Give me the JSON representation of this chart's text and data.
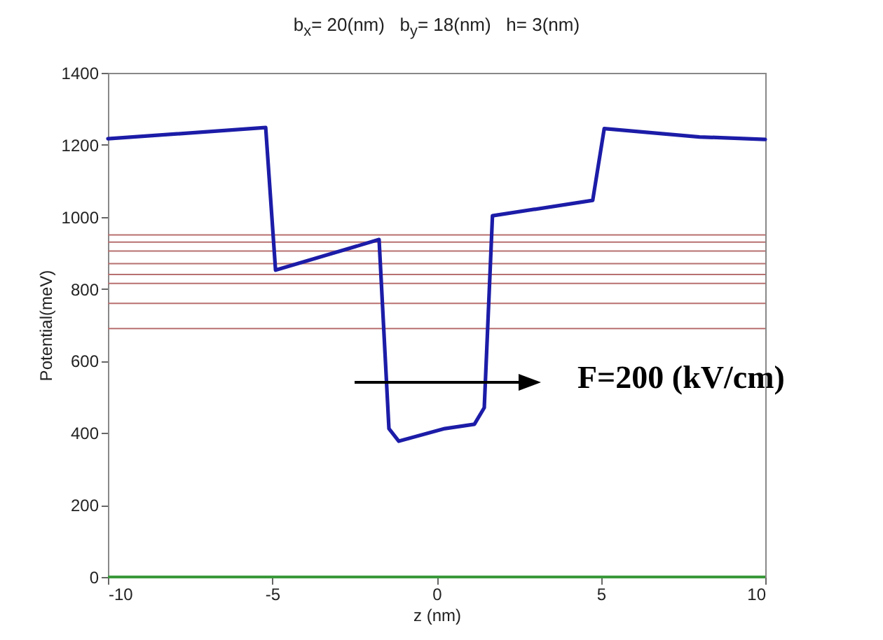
{
  "chart_data": {
    "type": "line",
    "title": "b$_{x}$= 20(nm)   b$_{y}$= 18(nm)   h= 3(nm)",
    "xlabel": "z (nm)",
    "ylabel": "Potential(meV)",
    "x": [
      -10,
      -5.2,
      -4.9,
      -1.75,
      -1.45,
      -1.15,
      0.25,
      1.15,
      1.45,
      1.7,
      4.75,
      5.1,
      8,
      10
    ],
    "series": [
      {
        "color": "#1c1ca8",
        "values": [
          1217,
          1248,
          852,
          937,
          412,
          377,
          412,
          424,
          470,
          1003,
          1046,
          1245,
          1222,
          1215
        ]
      }
    ],
    "xlim": [
      -10,
      10
    ],
    "xticks": [
      -10,
      -5,
      0,
      5,
      10
    ],
    "ylim": [
      0,
      1400
    ],
    "yticks": [
      0,
      200,
      400,
      600,
      800,
      1000,
      1200,
      1400
    ],
    "ref_lines": [
      {
        "axis": "y",
        "value": 950,
        "color": "#b87070"
      },
      {
        "axis": "y",
        "value": 930,
        "color": "#b87070"
      },
      {
        "axis": "y",
        "value": 905,
        "color": "#b87070"
      },
      {
        "axis": "y",
        "value": 870,
        "color": "#b87070"
      },
      {
        "axis": "y",
        "value": 840,
        "color": "#b87070"
      },
      {
        "axis": "y",
        "value": 815,
        "color": "#b87070"
      },
      {
        "axis": "y",
        "value": 760,
        "color": "#b87070"
      },
      {
        "axis": "y",
        "value": 690,
        "color": "#b87070"
      },
      {
        "axis": "y",
        "value": 0,
        "color": "#3a9a3a"
      }
    ],
    "annotations": [
      "F=200 (kV/cm)"
    ]
  }
}
